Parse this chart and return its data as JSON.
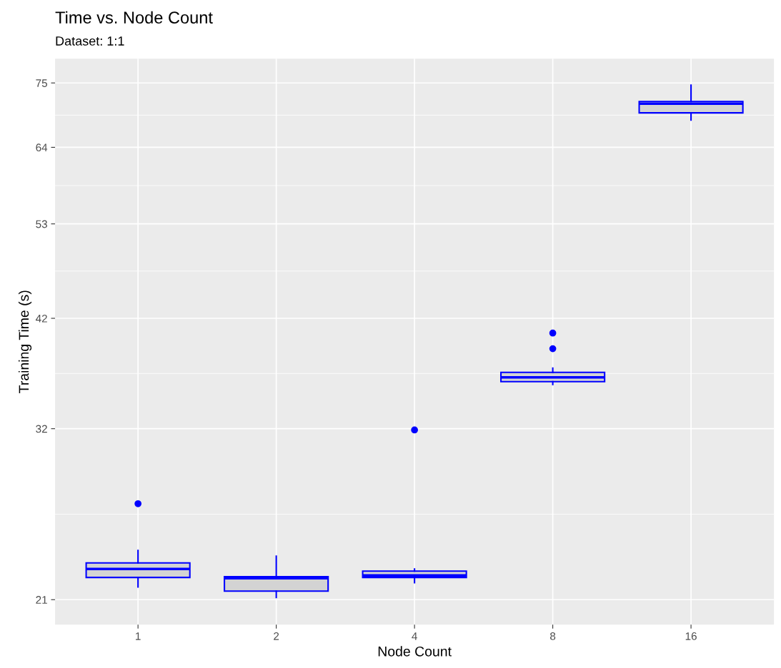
{
  "chart_data": {
    "type": "box",
    "title": "Time vs. Node Count",
    "subtitle": "Dataset: 1:1",
    "xlabel": "Node Count",
    "ylabel": "Training Time (s)",
    "categories": [
      "1",
      "2",
      "4",
      "8",
      "16"
    ],
    "boxes": [
      {
        "low": 21.67,
        "q1": 22.18,
        "median": 22.65,
        "q3": 22.99,
        "high": 23.71,
        "outliers": [
          26.6
        ]
      },
      {
        "low": 21.11,
        "q1": 21.45,
        "median": 22.14,
        "q3": 22.22,
        "high": 23.38
      },
      {
        "low": 21.9,
        "q1": 22.18,
        "median": 22.29,
        "q3": 22.53,
        "high": 22.65,
        "outliers": [
          31.9
        ]
      },
      {
        "low": 35.68,
        "q1": 35.93,
        "median": 36.31,
        "q3": 36.76,
        "high": 37.15,
        "outliers": [
          38.97,
          40.5
        ]
      },
      {
        "low": 68.46,
        "q1": 69.67,
        "median": 71.27,
        "q3": 71.65,
        "high": 74.6
      }
    ],
    "color": "#0000ff",
    "log": "y",
    "ylim": [
      19.75,
      79.6
    ],
    "yticks": [
      21,
      32,
      42,
      53,
      64,
      75
    ],
    "grid": true
  }
}
